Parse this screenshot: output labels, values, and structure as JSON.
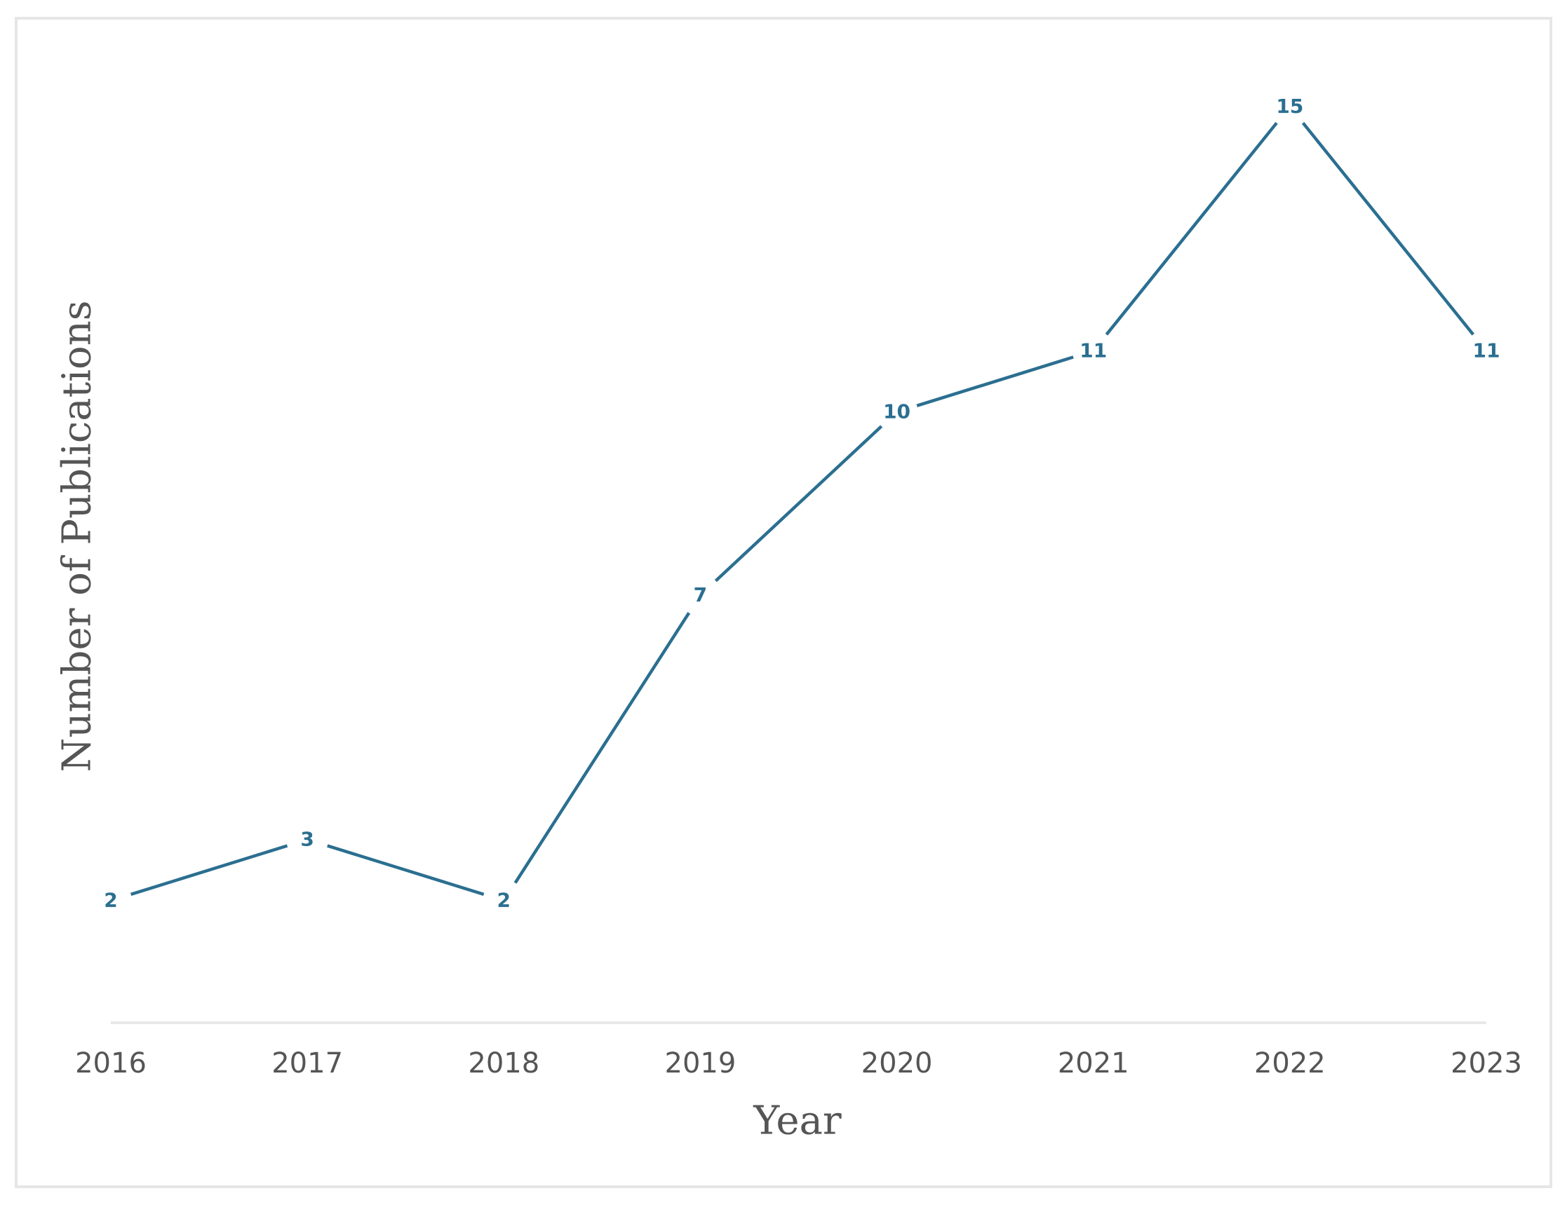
{
  "chart_data": {
    "type": "line",
    "x_label": "Year",
    "y_label": "Number of Publications",
    "categories": [
      "2016",
      "2017",
      "2018",
      "2019",
      "2020",
      "2021",
      "2022",
      "2023"
    ],
    "values": [
      2,
      3,
      2,
      7,
      10,
      11,
      15,
      11
    ],
    "color": "#2b6f90",
    "ylim": [
      0,
      15
    ]
  }
}
